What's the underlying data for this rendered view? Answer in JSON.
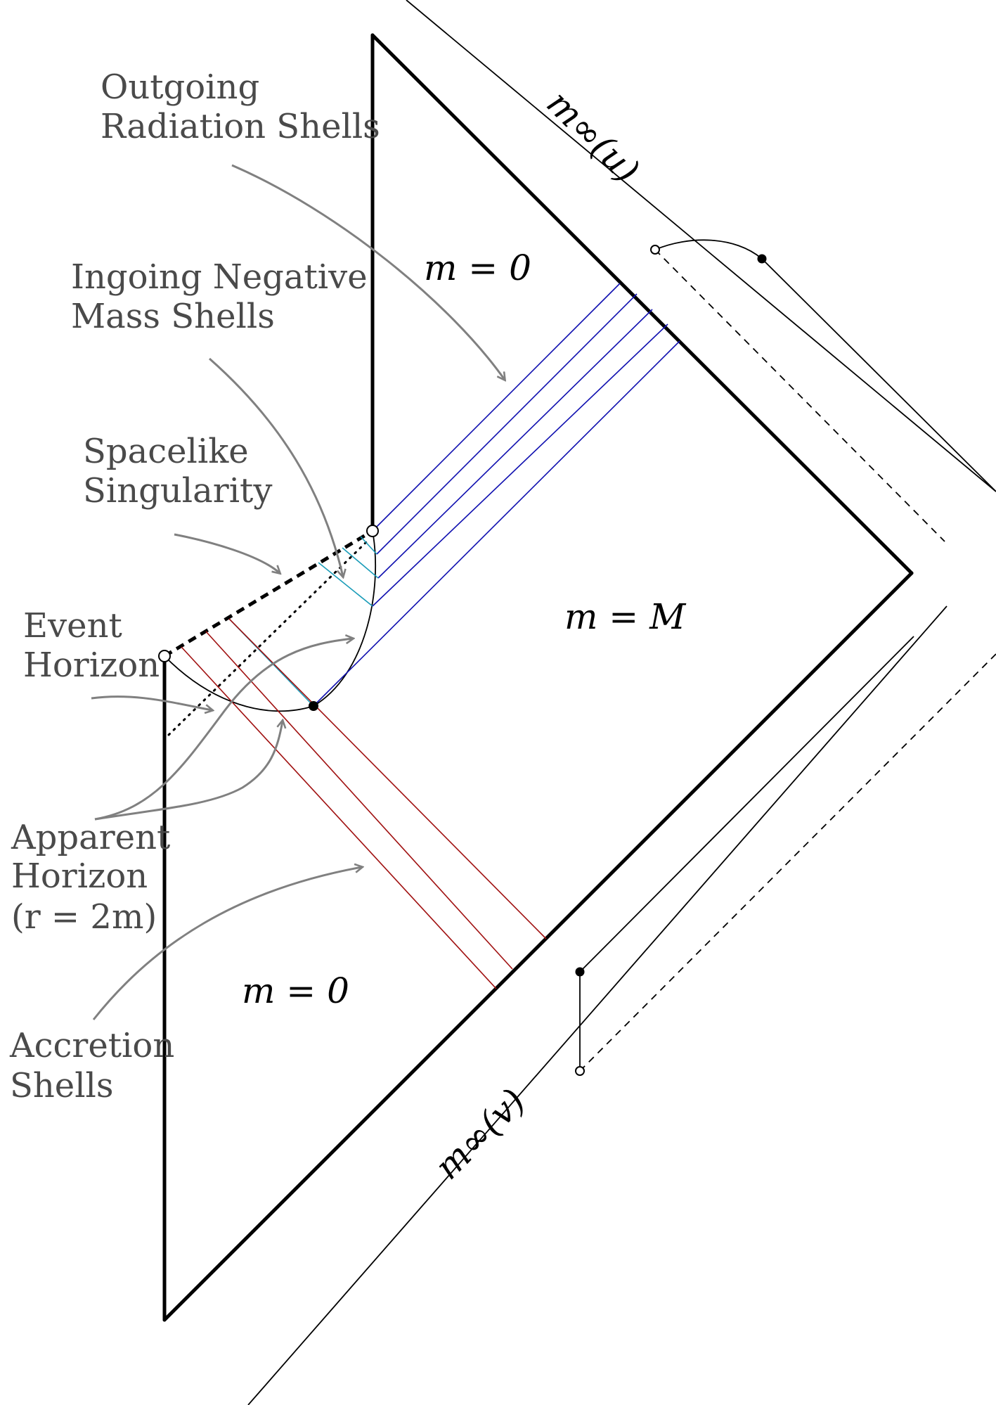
{
  "labels": {
    "outgoing_line1": "Outgoing",
    "outgoing_line2": "Radiation Shells",
    "ingoing_line1": "Ingoing Negative",
    "ingoing_line2": "Mass Shells",
    "spacelike_line1": "Spacelike",
    "spacelike_line2": "Singularity",
    "event_line1": "Event",
    "event_line2": "Horizon",
    "apparent_line1": "Apparent",
    "apparent_line2": "Horizon",
    "apparent_line3": "(r = 2m)",
    "accretion_line1": "Accretion",
    "accretion_line2": "Shells"
  },
  "math": {
    "region_top": "m = 0",
    "region_middle": "m = M",
    "region_bottom": "m = 0",
    "m_inf_u": "m∞(u)",
    "m_inf_v": "m∞(v)"
  },
  "colors": {
    "outgoing_shells": "#1010b0",
    "negative_mass_shells": "#1a9cb8",
    "accretion_shells": "#a01010",
    "annotation_arrows": "#808080"
  }
}
